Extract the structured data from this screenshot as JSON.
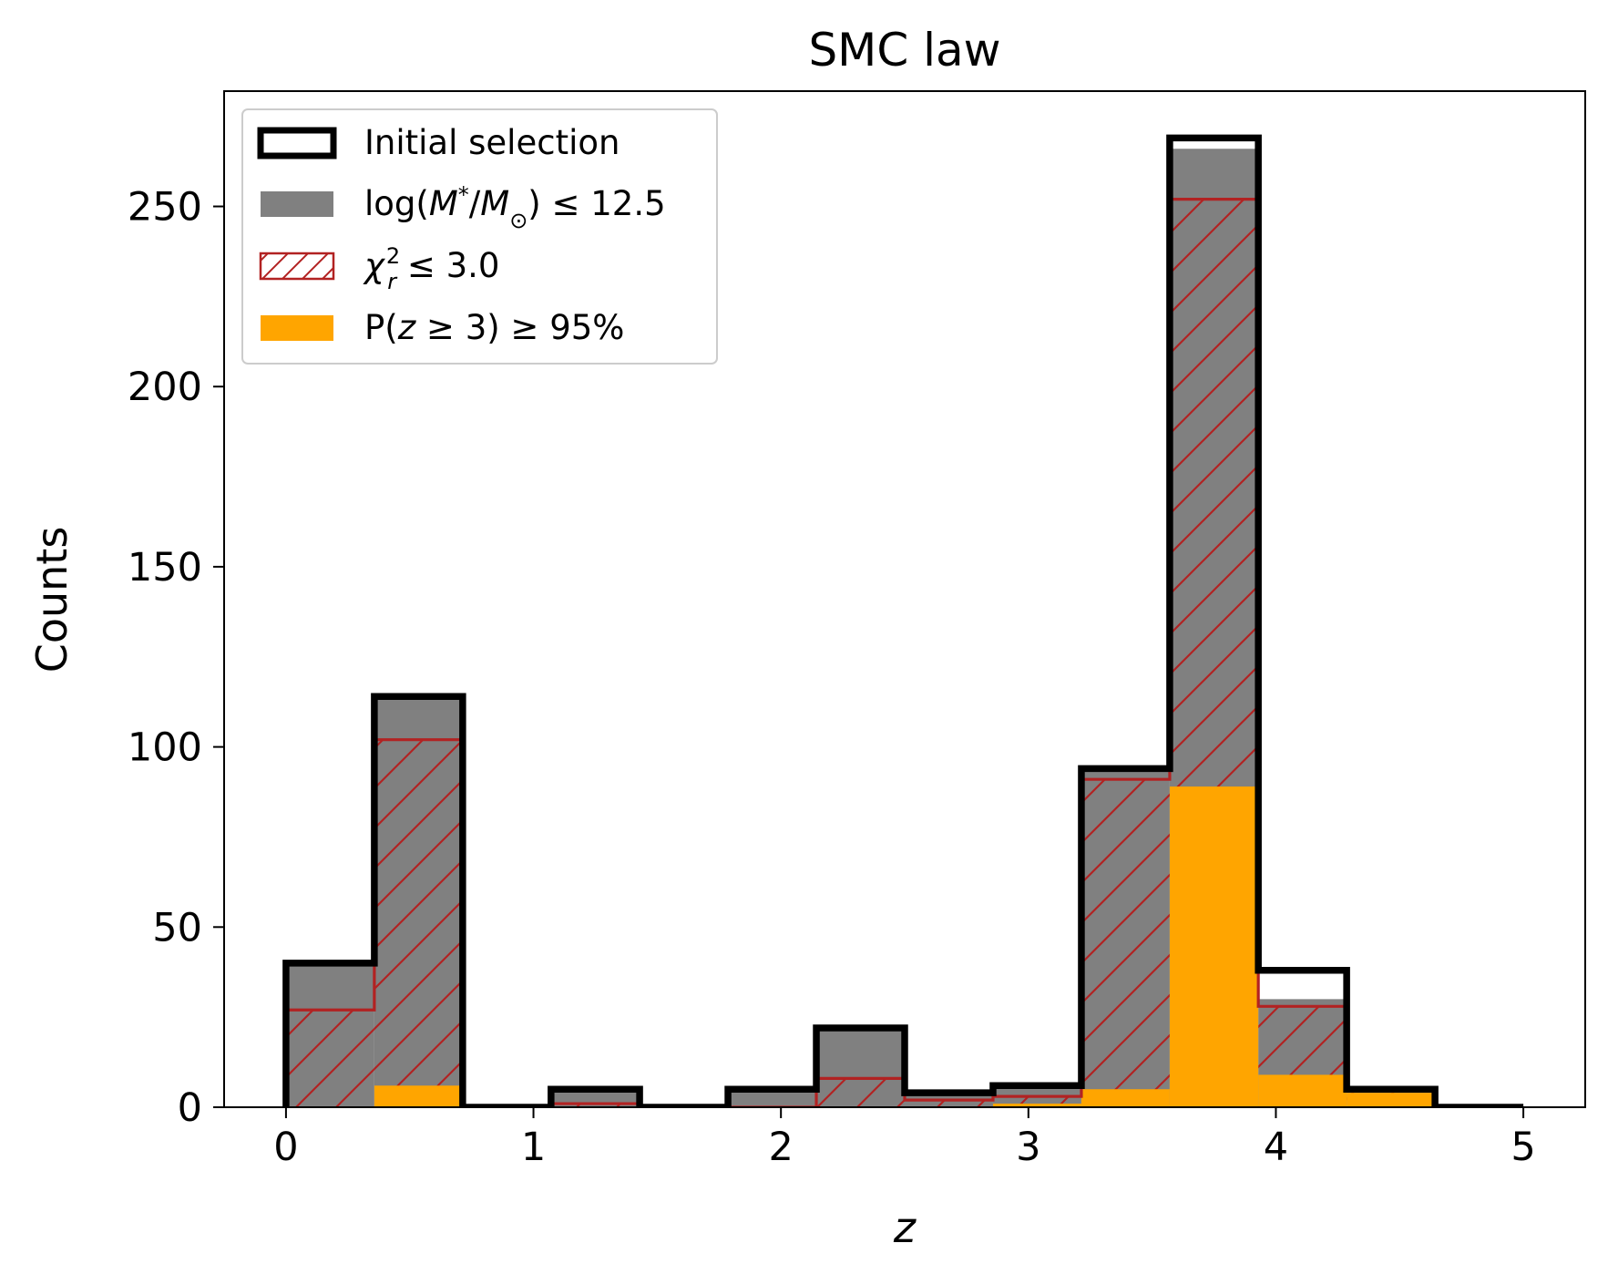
{
  "chart_data": {
    "type": "histogram",
    "title": "SMC law",
    "xlabel": "z",
    "ylabel": "Counts",
    "xlim": [
      -0.25,
      5.25
    ],
    "ylim": [
      0,
      282
    ],
    "xticks": [
      0,
      1,
      2,
      3,
      4,
      5
    ],
    "yticks": [
      0,
      50,
      100,
      150,
      200,
      250
    ],
    "bin_edges": [
      0,
      0.357,
      0.714,
      1.071,
      1.429,
      1.786,
      2.143,
      2.5,
      2.857,
      3.214,
      3.571,
      3.929,
      4.286,
      4.643,
      5.0
    ],
    "legend_position": "top-left",
    "series": [
      {
        "name": "Initial selection",
        "style": "step-outline",
        "color": "#000000",
        "values": [
          40,
          114,
          0,
          5,
          0,
          5,
          22,
          4,
          6,
          94,
          269,
          38,
          5,
          0
        ]
      },
      {
        "name": "log(M*/M⊙) ≤ 12.5",
        "style": "filled",
        "color": "#808080",
        "values": [
          40,
          114,
          0,
          5,
          0,
          5,
          22,
          4,
          6,
          94,
          266,
          30,
          5,
          0
        ]
      },
      {
        "name": "χr² ≤ 3.0",
        "style": "hatched",
        "color": "#b22222",
        "values": [
          27,
          102,
          0,
          1,
          0,
          0,
          8,
          2,
          3,
          91,
          252,
          28,
          5,
          0
        ]
      },
      {
        "name": "P(z ≥ 3) ≥ 95%",
        "style": "filled",
        "color": "#ffa500",
        "values": [
          0,
          6,
          0,
          0,
          0,
          0,
          0,
          0,
          1,
          5,
          89,
          9,
          4,
          0
        ]
      }
    ],
    "legend_labels": {
      "initial": "Initial selection",
      "mass_prefix": "log(",
      "mass_M": "M",
      "mass_star": "*",
      "mass_slash": "/",
      "mass_sun_M": "M",
      "mass_sun_sub": "⊙",
      "mass_suffix": ") ≤ 12.5",
      "chi_symbol": "χ",
      "chi_sub": "r",
      "chi_sup": "2",
      "chi_suffix": " ≤ 3.0",
      "pz_prefix": "P(",
      "pz_z": "z",
      "pz_suffix": " ≥ 3) ≥ 95%"
    }
  }
}
